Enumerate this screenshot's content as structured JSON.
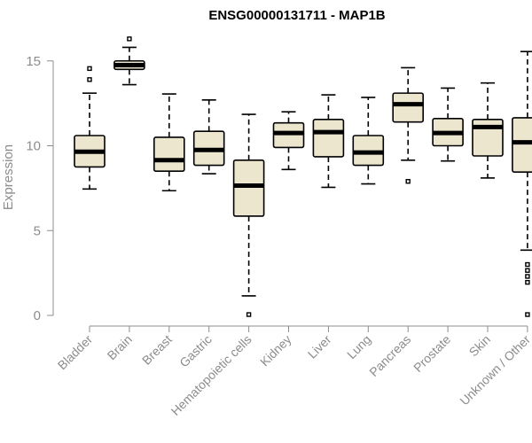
{
  "chart_data": {
    "type": "box",
    "title": "ENSG00000131711 - MAP1B",
    "xlabel": "",
    "ylabel": "Expression",
    "ylim": [
      0,
      15.8
    ],
    "yticks": [
      "0",
      "5",
      "10",
      "15"
    ],
    "ytick_values": [
      0,
      5,
      10,
      15
    ],
    "box_fill": "#ede6cf",
    "categories": [
      "Bladder",
      "Brain",
      "Breast",
      "Gastric",
      "Hematopoietic cells",
      "Kidney",
      "Liver",
      "Lung",
      "Pancreas",
      "Prostate",
      "Skin",
      "Unknown / Other"
    ],
    "boxes": [
      {
        "whisker_low": 7.45,
        "q1": 8.75,
        "median": 9.65,
        "q3": 10.6,
        "whisker_high": 13.1,
        "outliers": [
          13.9,
          14.55
        ]
      },
      {
        "whisker_low": 13.6,
        "q1": 14.5,
        "median": 14.75,
        "q3": 15.0,
        "whisker_high": 15.8,
        "outliers": [
          16.3
        ]
      },
      {
        "whisker_low": 7.35,
        "q1": 8.5,
        "median": 9.15,
        "q3": 10.5,
        "whisker_high": 13.05,
        "outliers": []
      },
      {
        "whisker_low": 8.35,
        "q1": 8.85,
        "median": 9.75,
        "q3": 10.85,
        "whisker_high": 12.7,
        "outliers": []
      },
      {
        "whisker_low": 1.15,
        "q1": 5.85,
        "median": 7.65,
        "q3": 9.15,
        "whisker_high": 11.85,
        "outliers": [
          0.05
        ]
      },
      {
        "whisker_low": 8.6,
        "q1": 9.9,
        "median": 10.75,
        "q3": 11.35,
        "whisker_high": 12.0,
        "outliers": []
      },
      {
        "whisker_low": 7.55,
        "q1": 9.35,
        "median": 10.8,
        "q3": 11.55,
        "whisker_high": 13.0,
        "outliers": []
      },
      {
        "whisker_low": 7.75,
        "q1": 8.85,
        "median": 9.6,
        "q3": 10.6,
        "whisker_high": 12.85,
        "outliers": []
      },
      {
        "whisker_low": 9.15,
        "q1": 11.4,
        "median": 12.45,
        "q3": 13.1,
        "whisker_high": 14.6,
        "outliers": [
          7.9
        ]
      },
      {
        "whisker_low": 9.1,
        "q1": 10.0,
        "median": 10.75,
        "q3": 11.6,
        "whisker_high": 13.4,
        "outliers": []
      },
      {
        "whisker_low": 8.1,
        "q1": 9.4,
        "median": 11.1,
        "q3": 11.55,
        "whisker_high": 13.7,
        "outliers": []
      },
      {
        "whisker_low": 3.85,
        "q1": 8.45,
        "median": 10.2,
        "q3": 11.65,
        "whisker_high": 15.55,
        "outliers": [
          0.05,
          1.95,
          2.3,
          2.65,
          3.0
        ]
      }
    ],
    "grid": false,
    "legend": "none"
  }
}
